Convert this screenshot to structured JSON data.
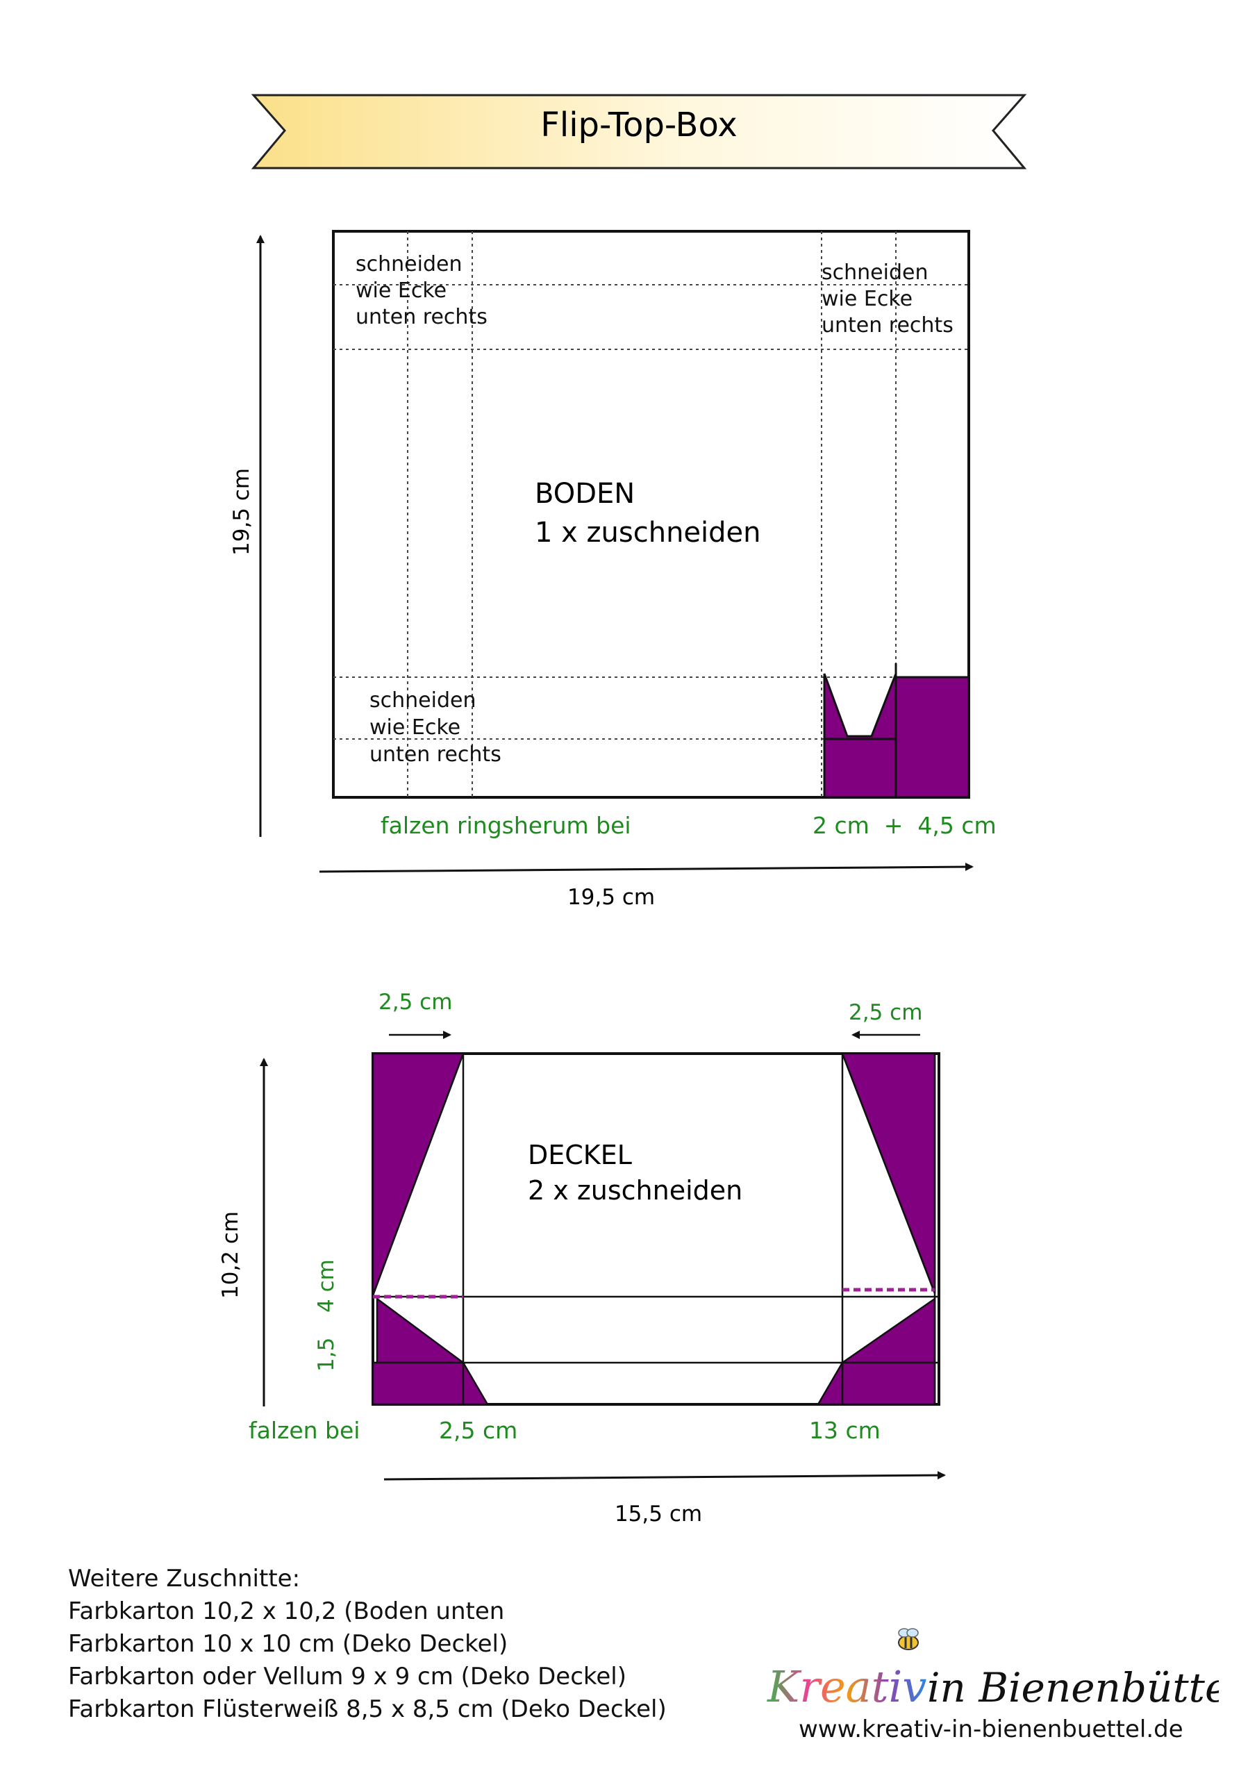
{
  "title": "Flip-Top-Box",
  "boden": {
    "title_line1": "BODEN",
    "title_line2": "1 x zuschneiden",
    "note_tl": [
      "schneiden",
      "wie Ecke",
      "unten rechts"
    ],
    "note_tr": [
      "schneiden",
      "wie Ecke",
      "unten rechts"
    ],
    "note_bl": [
      "schneiden",
      "wie Ecke",
      "unten rechts"
    ],
    "fold_label": "falzen ringsherum bei",
    "fold_values": "2 cm  +  4,5 cm",
    "width_label": "19,5 cm",
    "height_label": "19,5 cm"
  },
  "deckel": {
    "title_line1": "DECKEL",
    "title_line2": "2 x zuschneiden",
    "arrow_left_label": "2,5 cm",
    "arrow_right_label": "2,5 cm",
    "fold_label": "falzen bei",
    "fold_value_1": "2,5 cm",
    "fold_value_2": "13 cm",
    "side_4": "4 cm",
    "side_15": "1,5",
    "width_label": "15,5 cm",
    "height_label": "10,2 cm"
  },
  "notes": {
    "heading": "Weitere Zuschnitte:",
    "items": [
      "Farbkarton 10,2 x 10,2 (Boden unten",
      "Farbkarton 10 x 10 cm (Deko Deckel)",
      "Farbkarton oder Vellum  9 x 9 cm (Deko Deckel)",
      "Farbkarton Flüsterweiß 8,5 x 8,5 cm (Deko Deckel)"
    ]
  },
  "brand": {
    "logo_text": "Kreativ in Bienenbüttel",
    "url": "www.kreativ-in-bienenbuettel.de"
  },
  "colors": {
    "purple": "#800080",
    "green": "#1f8a1f",
    "banner_left": "#fbe38e",
    "banner_right": "#ffffff"
  }
}
